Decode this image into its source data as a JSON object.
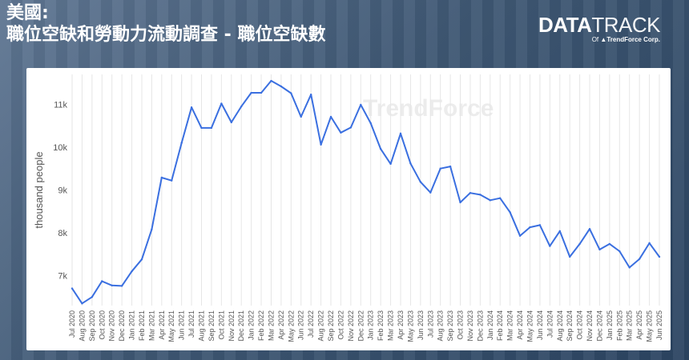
{
  "header": {
    "line1": "美國:",
    "line2": "職位空缺和勞動力流動調查 - 職位空缺數"
  },
  "logo": {
    "main_bold": "DATA",
    "main_thin": "TRACK",
    "sub_prefix": "Of",
    "sub_brand": "TrendForce Corp."
  },
  "watermark": "TrendForce",
  "colors": {
    "line": "#3a6fe0",
    "grid": "#e6e6e6"
  },
  "chart_data": {
    "type": "line",
    "title": "",
    "xlabel": "",
    "ylabel": "thousand people",
    "ylim": [
      6300,
      11700
    ],
    "yticks": [
      7000,
      8000,
      9000,
      10000,
      11000
    ],
    "ytick_labels": [
      "7k",
      "8k",
      "9k",
      "10k",
      "11k"
    ],
    "grid": "vertical",
    "categories": [
      "Jul 2020",
      "Aug 2020",
      "Sep 2020",
      "Oct 2020",
      "Nov 2020",
      "Dec 2020",
      "Jan 2021",
      "Feb 2021",
      "Mar 2021",
      "Apr 2021",
      "May 2021",
      "Jun 2021",
      "Jul 2021",
      "Aug 2021",
      "Sep 2021",
      "Oct 2021",
      "Nov 2021",
      "Dec 2021",
      "Jan 2022",
      "Feb 2022",
      "Mar 2022",
      "Apr 2022",
      "May 2022",
      "Jun 2022",
      "Jul 2022",
      "Aug 2022",
      "Sep 2022",
      "Oct 2022",
      "Nov 2022",
      "Dec 2022",
      "Jan 2023",
      "Feb 2023",
      "Mar 2023",
      "Apr 2023",
      "May 2023",
      "Jun 2023",
      "Jul 2023",
      "Aug 2023",
      "Sep 2023",
      "Oct 2023",
      "Nov 2023",
      "Dec 2023",
      "Jan 2024",
      "Feb 2024",
      "Mar 2024",
      "Apr 2024",
      "May 2024",
      "Jun 2024",
      "Jul 2024",
      "Aug 2024",
      "Sep 2024",
      "Oct 2024",
      "Nov 2024",
      "Dec 2024",
      "Jan 2025",
      "Feb 2025",
      "Mar 2025",
      "Apr 2025",
      "May 2025",
      "Jun 2025"
    ],
    "series": [
      {
        "values": [
          6700,
          6350,
          6500,
          6870,
          6770,
          6760,
          7100,
          7380,
          8080,
          9290,
          9220,
          10100,
          10930,
          10450,
          10450,
          11020,
          10580,
          10950,
          11270,
          11270,
          11550,
          11420,
          11260,
          10710,
          11230,
          10060,
          10710,
          10340,
          10460,
          10990,
          10560,
          9960,
          9610,
          10320,
          9620,
          9190,
          8940,
          9500,
          9550,
          8710,
          8930,
          8890,
          8760,
          8810,
          8480,
          7930,
          8130,
          8180,
          7690,
          8040,
          7440,
          7740,
          8090,
          7610,
          7740,
          7570,
          7190,
          7390,
          7760,
          7440
        ]
      }
    ]
  }
}
